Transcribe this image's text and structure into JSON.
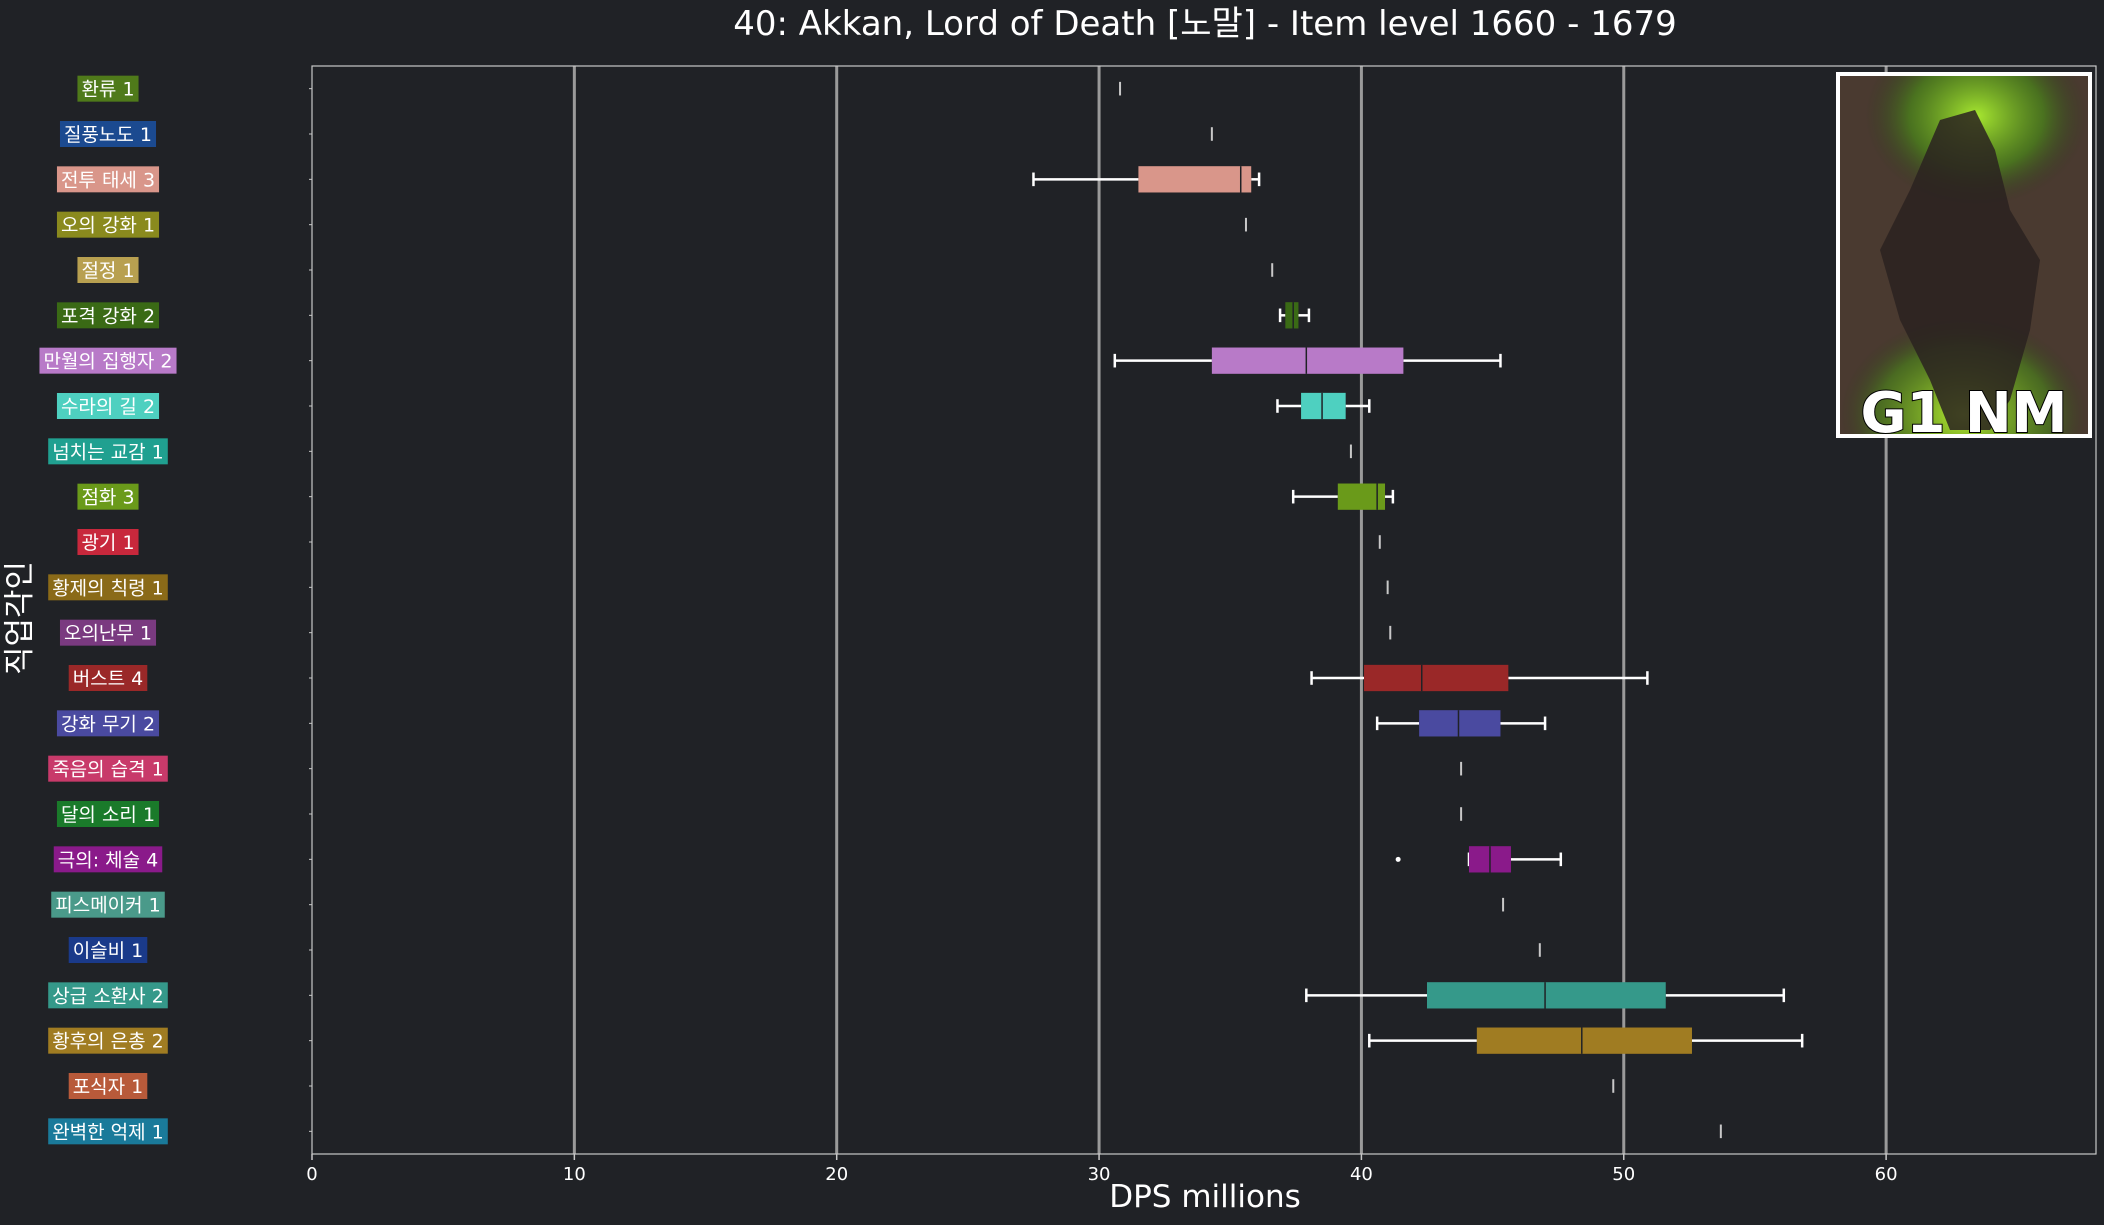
{
  "chart_data": {
    "type": "box",
    "title": "40: Akkan, Lord of Death [노말] - Item level 1660 - 1679",
    "xlabel": "DPS millions",
    "ylabel": "직업각인",
    "xlim": [
      0,
      68
    ],
    "xticks": [
      0,
      10,
      20,
      30,
      40,
      50,
      60
    ],
    "grid": "vertical",
    "badge_text": "G1 NM",
    "series": [
      {
        "label": "환류 1",
        "color": "#4f7a1a",
        "stats": [
          30.8,
          30.8,
          30.8,
          30.8,
          30.8
        ],
        "outliers": []
      },
      {
        "label": "질풍노도 1",
        "color": "#1b4a90",
        "stats": [
          34.3,
          34.3,
          34.3,
          34.3,
          34.3
        ],
        "outliers": []
      },
      {
        "label": "전투 태세 3",
        "color": "#d9968a",
        "stats": [
          27.5,
          31.5,
          35.4,
          35.8,
          36.1
        ],
        "outliers": []
      },
      {
        "label": "오의 강화 1",
        "color": "#8a8a1e",
        "stats": [
          35.6,
          35.6,
          35.6,
          35.6,
          35.6
        ],
        "outliers": []
      },
      {
        "label": "절정 1",
        "color": "#b8a050",
        "stats": [
          36.6,
          36.6,
          36.6,
          36.6,
          36.6
        ],
        "outliers": []
      },
      {
        "label": "포격 강화 2",
        "color": "#3a6a15",
        "stats": [
          36.9,
          37.1,
          37.4,
          37.6,
          38.0
        ],
        "outliers": []
      },
      {
        "label": "만월의 집행자 2",
        "color": "#b87ac8",
        "stats": [
          30.6,
          34.3,
          37.9,
          41.6,
          45.3
        ],
        "outliers": []
      },
      {
        "label": "수라의 길 2",
        "color": "#4ed0c0",
        "stats": [
          36.8,
          37.7,
          38.5,
          39.4,
          40.3
        ],
        "outliers": []
      },
      {
        "label": "넘치는 교감 1",
        "color": "#20a090",
        "stats": [
          39.6,
          39.6,
          39.6,
          39.6,
          39.6
        ],
        "outliers": []
      },
      {
        "label": "점화 3",
        "color": "#6a9a1a",
        "stats": [
          37.4,
          39.1,
          40.6,
          40.9,
          41.2
        ],
        "outliers": []
      },
      {
        "label": "광기 1",
        "color": "#c8283c",
        "stats": [
          40.7,
          40.7,
          40.7,
          40.7,
          40.7
        ],
        "outliers": []
      },
      {
        "label": "황제의 칙령 1",
        "color": "#8a6a18",
        "stats": [
          41.0,
          41.0,
          41.0,
          41.0,
          41.0
        ],
        "outliers": []
      },
      {
        "label": "오의난무 1",
        "color": "#7a3a80",
        "stats": [
          41.1,
          41.1,
          41.1,
          41.1,
          41.1
        ],
        "outliers": []
      },
      {
        "label": "버스트 4",
        "color": "#9a2828",
        "stats": [
          38.1,
          40.1,
          42.3,
          45.6,
          50.9
        ],
        "outliers": []
      },
      {
        "label": "강화 무기 2",
        "color": "#4a4aa0",
        "stats": [
          40.6,
          42.2,
          43.7,
          45.3,
          47.0
        ],
        "outliers": []
      },
      {
        "label": "죽음의 습격 1",
        "color": "#c83a6a",
        "stats": [
          43.8,
          43.8,
          43.8,
          43.8,
          43.8
        ],
        "outliers": []
      },
      {
        "label": "달의 소리 1",
        "color": "#1a7a2a",
        "stats": [
          43.8,
          43.8,
          43.8,
          43.8,
          43.8
        ],
        "outliers": []
      },
      {
        "label": "극의: 체술 4",
        "color": "#8a1a8a",
        "stats": [
          44.1,
          44.1,
          44.9,
          45.7,
          47.6
        ],
        "outliers": [
          41.4
        ]
      },
      {
        "label": "피스메이커 1",
        "color": "#4a9a8a",
        "stats": [
          45.4,
          45.4,
          45.4,
          45.4,
          45.4
        ],
        "outliers": []
      },
      {
        "label": "이슬비 1",
        "color": "#1a3a8a",
        "stats": [
          46.8,
          46.8,
          46.8,
          46.8,
          46.8
        ],
        "outliers": []
      },
      {
        "label": "상급 소환사 2",
        "color": "#35998a",
        "stats": [
          37.9,
          42.5,
          47.0,
          51.6,
          56.1
        ],
        "outliers": []
      },
      {
        "label": "황후의 은총 2",
        "color": "#a07c22",
        "stats": [
          40.3,
          44.4,
          48.4,
          52.6,
          56.8
        ],
        "outliers": []
      },
      {
        "label": "포식자 1",
        "color": "#b85a3a",
        "stats": [
          49.6,
          49.6,
          49.6,
          49.6,
          49.6
        ],
        "outliers": []
      },
      {
        "label": "완벽한 억제 1",
        "color": "#1a7a9a",
        "stats": [
          53.7,
          53.7,
          53.7,
          53.7,
          53.7
        ],
        "outliers": []
      }
    ]
  }
}
